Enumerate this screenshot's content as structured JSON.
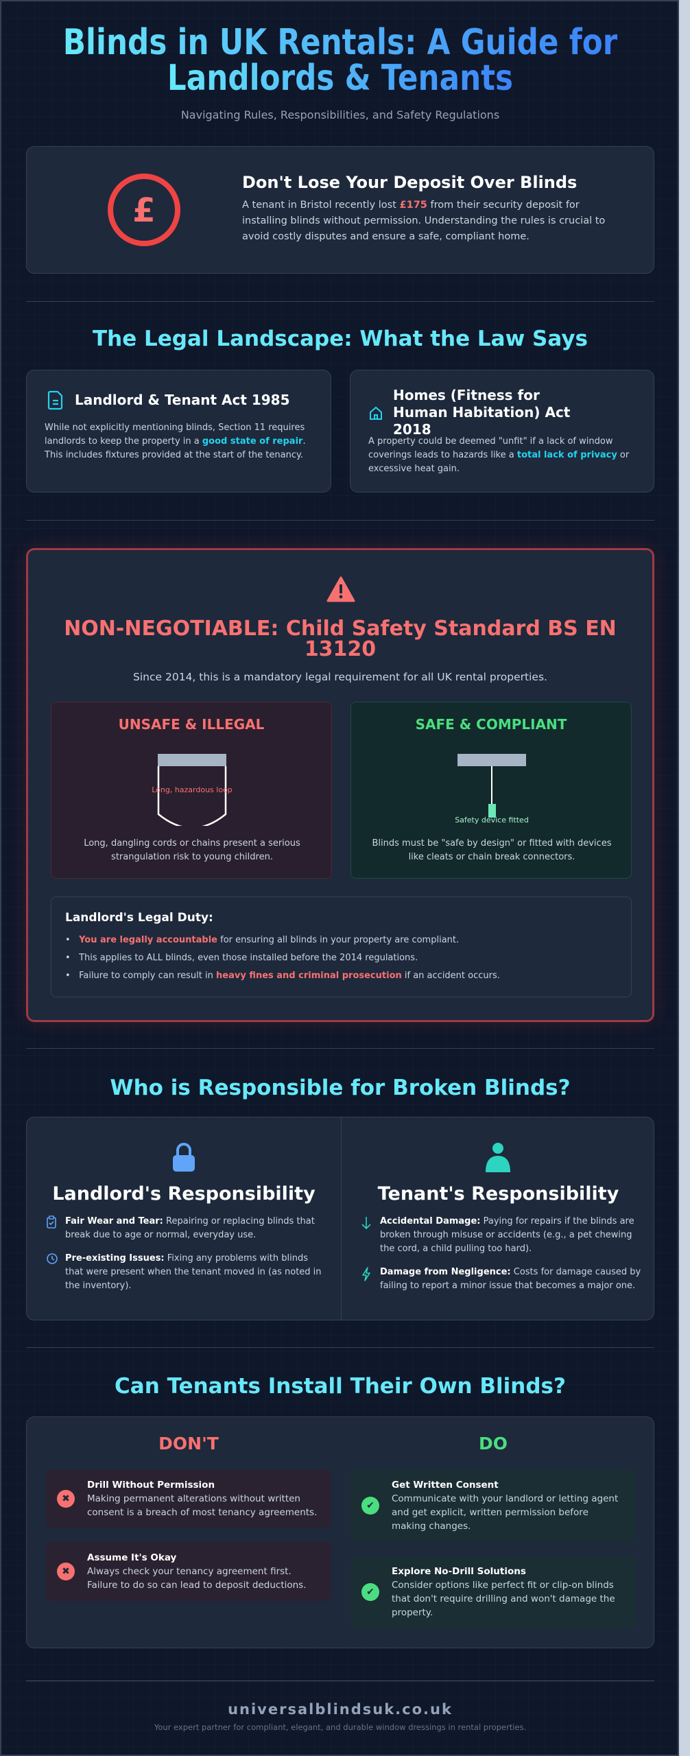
{
  "header": {
    "title_line1": "Blinds in UK Rentals: A Guide for",
    "title_line2": "Landlords & Tenants",
    "subtitle": "Navigating Rules, Responsibilities, and Safety Regulations"
  },
  "hero": {
    "icon": "pound-icon",
    "heading": "Don't Lose Your Deposit Over Blinds",
    "text_before": "A tenant in Bristol recently lost ",
    "amount": "£175",
    "text_after": " from their security deposit for installing blinds without permission. Understanding the rules is crucial to avoid costly disputes and ensure a safe, compliant home."
  },
  "legal": {
    "heading": "The Legal Landscape: What the Law Says",
    "cards": [
      {
        "icon": "document-icon",
        "title": "Landlord & Tenant Act 1985",
        "before": "While not explicitly mentioning blinds, Section 11 requires landlords to keep the property in a ",
        "highlight": "good state of repair",
        "after": ". This includes fixtures provided at the start of the tenancy."
      },
      {
        "icon": "home-icon",
        "title": "Homes (Fitness for Human Habitation) Act 2018",
        "before": "A property could be deemed \"unfit\" if a lack of window coverings leads to hazards like a ",
        "highlight": "total lack of privacy",
        "after": " or excessive heat gain."
      }
    ]
  },
  "safety": {
    "icon": "warning-icon",
    "heading": "NON-NEGOTIABLE: Child Safety Standard BS EN 13120",
    "subtitle": "Since 2014, this is a mandatory legal requirement for all UK rental properties.",
    "unsafe": {
      "title": "UNSAFE & ILLEGAL",
      "diagram_label": "Long, hazardous loop",
      "text": "Long, dangling cords or chains present a serious strangulation risk to young children."
    },
    "safe": {
      "title": "SAFE & COMPLIANT",
      "diagram_label": "Safety device fitted",
      "text": "Blinds must be \"safe by design\" or fitted with devices like cleats or chain break connectors."
    },
    "duty": {
      "title": "Landlord's Legal Duty:",
      "items": [
        {
          "highlight": "You are legally accountable",
          "after": " for ensuring all blinds in your property are compliant.",
          "before": ""
        },
        {
          "before": "This applies to ALL blinds, even those installed before the 2014 regulations.",
          "highlight": "",
          "after": ""
        },
        {
          "before": "Failure to comply can result in ",
          "highlight": "heavy fines and criminal prosecution",
          "after": " if an accident occurs."
        }
      ]
    }
  },
  "responsibility": {
    "heading": "Who is Responsible for Broken Blinds?",
    "landlord": {
      "icon": "lock-icon",
      "title": "Landlord's Responsibility",
      "items": [
        {
          "icon": "clipboard-check-icon",
          "label": "Fair Wear and Tear:",
          "text": " Repairing or replacing blinds that break due to age or normal, everyday use."
        },
        {
          "icon": "clock-icon",
          "label": "Pre-existing Issues:",
          "text": " Fixing any problems with blinds that were present when the tenant moved in (as noted in the inventory)."
        }
      ]
    },
    "tenant": {
      "icon": "user-icon",
      "title": "Tenant's Responsibility",
      "items": [
        {
          "icon": "arrow-down-icon",
          "label": "Accidental Damage:",
          "text": " Paying for repairs if the blinds are broken through misuse or accidents (e.g., a pet chewing the cord, a child pulling too hard)."
        },
        {
          "icon": "lightning-icon",
          "label": "Damage from Negligence:",
          "text": " Costs for damage caused by failing to report a minor issue that becomes a major one."
        }
      ]
    }
  },
  "install": {
    "heading": "Can Tenants Install Their Own Blinds?",
    "dont": {
      "title": "DON'T",
      "items": [
        {
          "title": "Drill Without Permission",
          "text": "Making permanent alterations without written consent is a breach of most tenancy agreements."
        },
        {
          "title": "Assume It's Okay",
          "text": "Always check your tenancy agreement first. Failure to do so can lead to deposit deductions."
        }
      ]
    },
    "do": {
      "title": "DO",
      "items": [
        {
          "title": "Get Written Consent",
          "text": "Communicate with your landlord or letting agent and get explicit, written permission before making changes."
        },
        {
          "title": "Explore No-Drill Solutions",
          "text": "Consider options like perfect fit or clip-on blinds that don't require drilling and won't damage the property."
        }
      ]
    }
  },
  "footer": {
    "domain": "universalblindsuk.co.uk",
    "tagline": "Your expert partner for compliant, elegant, and durable window dressings in rental properties."
  },
  "colors": {
    "accent": "#67e8f9",
    "danger": "#f87171",
    "success": "#4ade80",
    "landlord": "#60a5fa",
    "tenant": "#2dd4bf"
  }
}
